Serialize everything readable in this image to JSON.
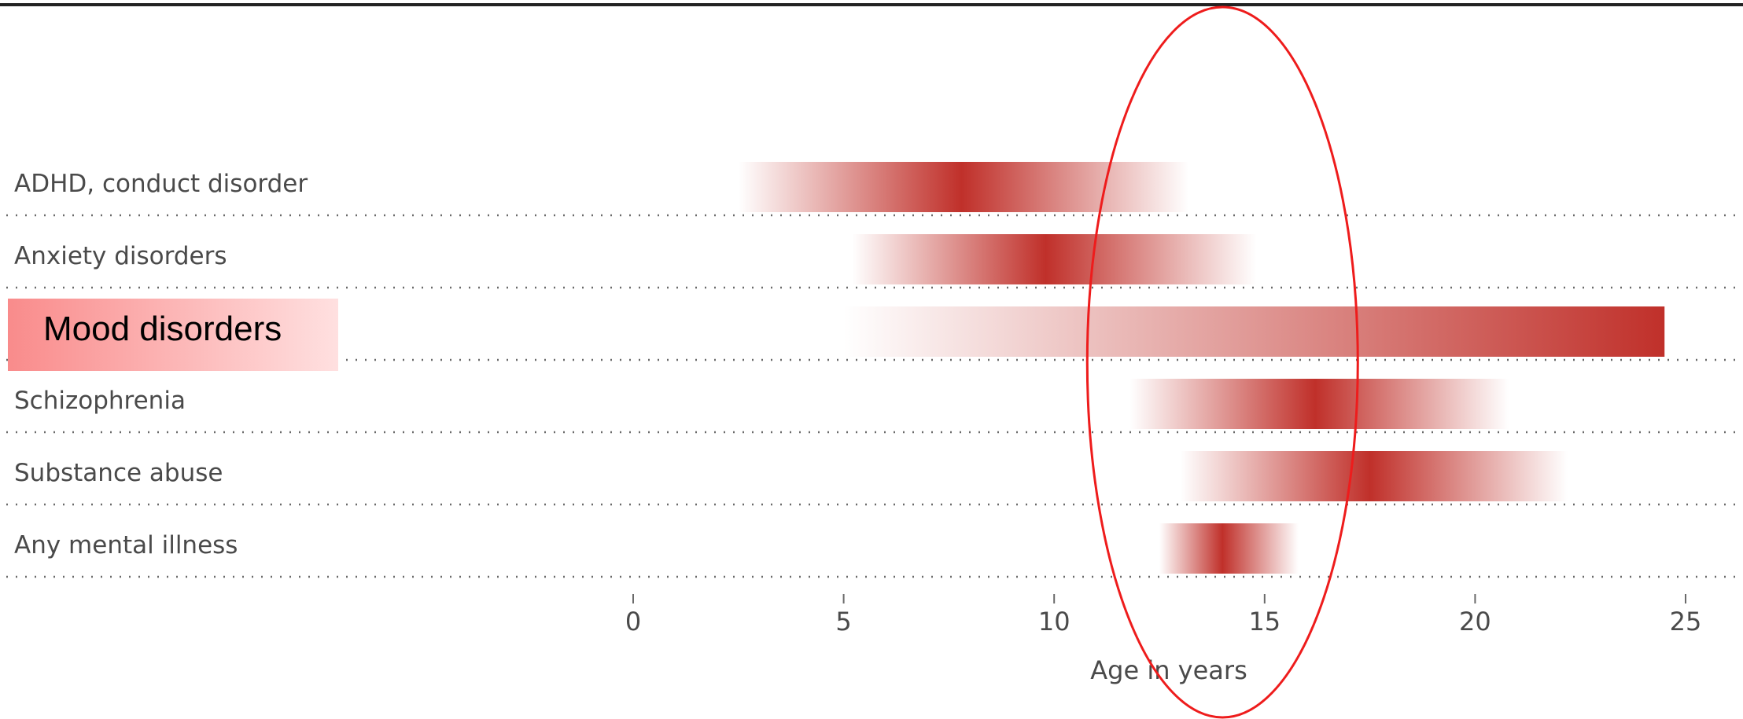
{
  "chart_data": {
    "type": "bar",
    "subtype": "age-of-onset-range",
    "categories": [
      "ADHD, conduct disorder",
      "Anxiety disorders",
      "Mood disorders",
      "Schizophrenia",
      "Substance abuse",
      "Any mental illness"
    ],
    "ranges": [
      {
        "category": "ADHD, conduct disorder",
        "start": 2.5,
        "peak": 7.8,
        "end": 13.2
      },
      {
        "category": "Anxiety disorders",
        "start": 5.2,
        "peak": 9.8,
        "end": 14.8
      },
      {
        "category": "Mood disorders",
        "start": 5.0,
        "peak": 24.5,
        "end": 24.5
      },
      {
        "category": "Schizophrenia",
        "start": 11.8,
        "peak": 16.2,
        "end": 20.8
      },
      {
        "category": "Substance abuse",
        "start": 13.0,
        "peak": 17.5,
        "end": 22.2
      },
      {
        "category": "Any mental illness",
        "start": 12.5,
        "peak": 14.0,
        "end": 15.8
      }
    ],
    "x_ticks": [
      "0",
      "5",
      "10",
      "15",
      "20",
      "25"
    ],
    "xlim": [
      0,
      25
    ],
    "xlabel": "Age in years",
    "title": "",
    "grid": "dotted row separators",
    "colors": {
      "peak": "#c0302a",
      "fade": "#ffffff",
      "text": "#4a4a4a"
    },
    "annotations": {
      "highlight_label": "Mood disorders",
      "highlight_color": "#f98b8b",
      "ellipse_color": "#ee1c1c",
      "ellipse_center_age": 14,
      "ellipse_note": "red ellipse drawn around ages ~11-17"
    }
  }
}
